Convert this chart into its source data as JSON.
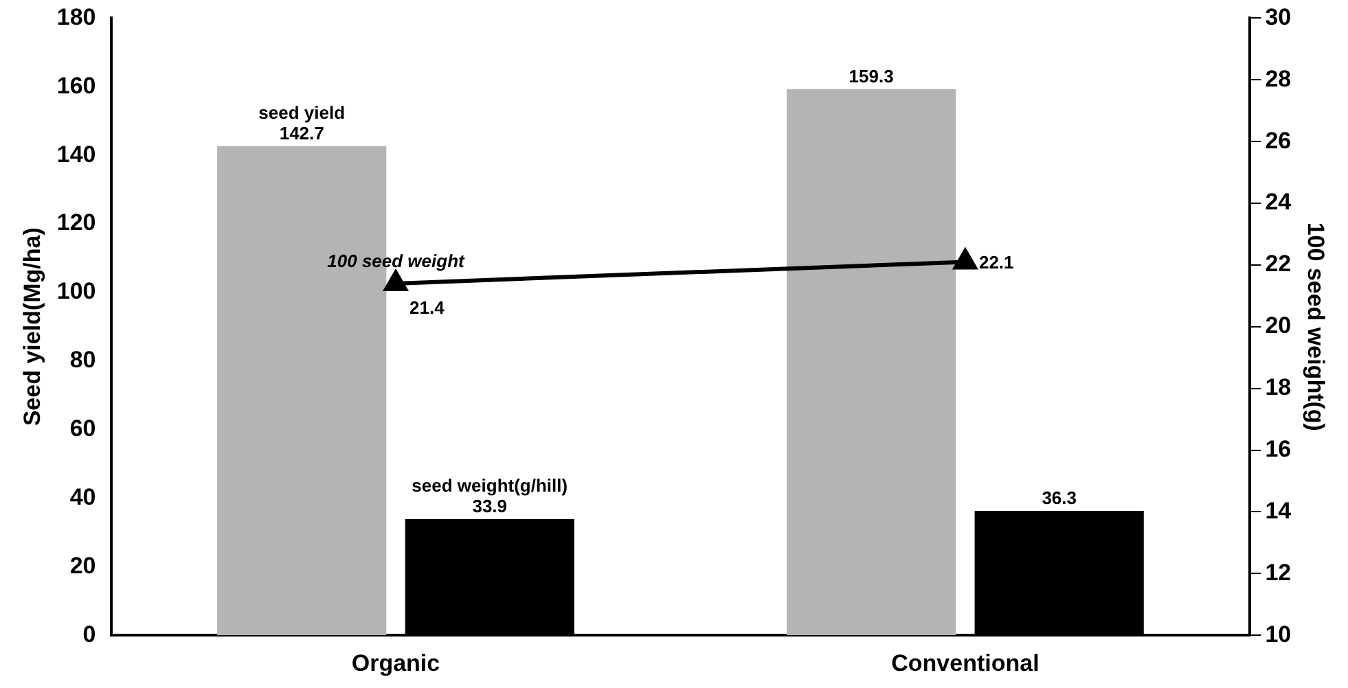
{
  "chart_data": {
    "type": "bar",
    "categories": [
      "Organic",
      "Conventional"
    ],
    "series": [
      {
        "name": "seed yield",
        "color": "#b4b4b4",
        "values": [
          142.7,
          159.3
        ]
      },
      {
        "name": "seed weight(g/hill)",
        "color": "#000000",
        "values": [
          33.9,
          36.3
        ]
      },
      {
        "name": "100 seed weight",
        "type": "line",
        "axis": "y2",
        "color": "#000000",
        "values": [
          21.4,
          22.1
        ]
      }
    ],
    "ylabel": "Seed yield(Mg/ha)",
    "y2label": "100 seed weight(g)",
    "ylim": [
      0,
      180
    ],
    "yticks": [
      0,
      20,
      40,
      60,
      80,
      100,
      120,
      140,
      160,
      180
    ],
    "y2lim": [
      10,
      30
    ],
    "y2ticks": [
      10,
      12,
      14,
      16,
      18,
      20,
      22,
      24,
      26,
      28,
      30
    ],
    "grid": false,
    "legend": false,
    "marker": "triangle",
    "data_labels": true
  }
}
